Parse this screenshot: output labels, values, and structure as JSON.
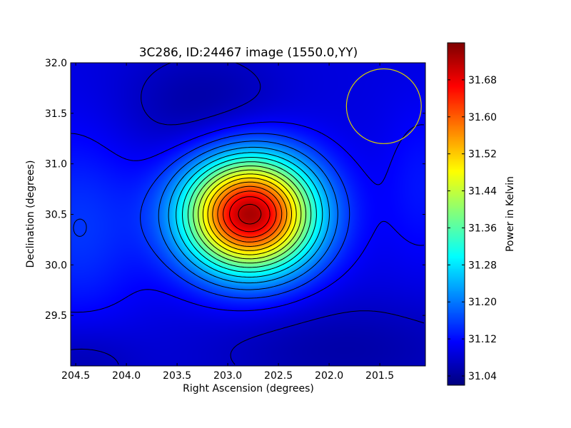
{
  "chart_data": {
    "type": "heatmap",
    "title": "3C286, ID:24467 image (1550.0,YY)",
    "xlabel": "Right Ascension (degrees)",
    "ylabel": "Declination (degrees)",
    "xlim": [
      204.55,
      201.05
    ],
    "ylim": [
      29.0,
      32.0
    ],
    "x_direction": "decreasing",
    "x_ticks": [
      204.5,
      204.0,
      203.5,
      203.0,
      202.5,
      202.0,
      201.5
    ],
    "x_tick_labels": [
      "204.5",
      "204.0",
      "203.5",
      "203.0",
      "202.5",
      "202.0",
      "201.5"
    ],
    "y_ticks": [
      29.5,
      30.0,
      30.5,
      31.0,
      31.5,
      32.0
    ],
    "y_tick_labels": [
      "29.5",
      "30.0",
      "30.5",
      "31.0",
      "31.5",
      "32.0"
    ],
    "colormap": "jet",
    "peak": {
      "ra": 202.78,
      "dec": 30.5,
      "value": 31.74
    },
    "background_value": 31.09,
    "beam_circle": {
      "ra": 201.46,
      "dec": 31.57,
      "radius_deg": 0.37,
      "color": "#d8d000"
    },
    "grid": false,
    "colorbar": {
      "label": "Power in Kelvin",
      "range": [
        31.02,
        31.76
      ],
      "ticks": [
        31.04,
        31.12,
        31.2,
        31.28,
        31.36,
        31.44,
        31.52,
        31.6,
        31.68
      ],
      "tick_labels": [
        "31.04",
        "31.12",
        "31.20",
        "31.28",
        "31.36",
        "31.44",
        "31.52",
        "31.60",
        "31.68"
      ],
      "placement": "right"
    }
  }
}
